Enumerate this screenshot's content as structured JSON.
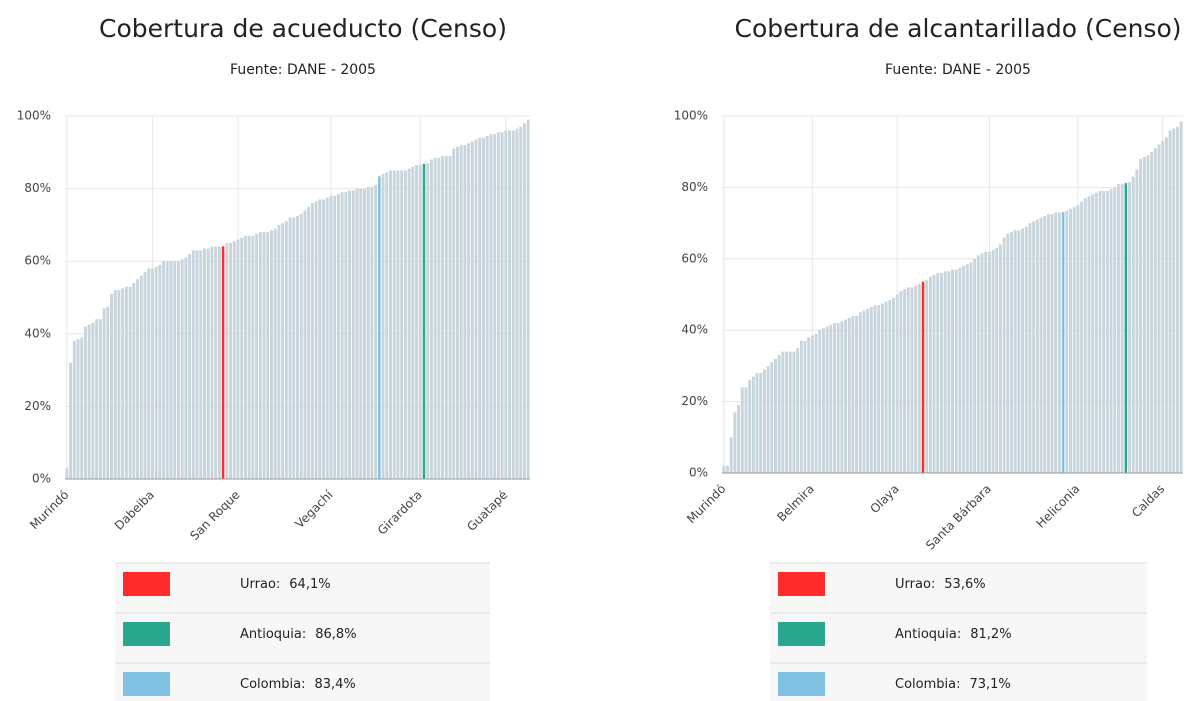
{
  "chart_data": [
    {
      "type": "bar",
      "title": "Cobertura de acueducto (Censo)",
      "subtitle": "Fuente: DANE - 2005",
      "categories": [
        "Murindó",
        null,
        null,
        null,
        null,
        null,
        null,
        null,
        null,
        null,
        null,
        null,
        null,
        null,
        null,
        null,
        null,
        null,
        null,
        null,
        null,
        null,
        null,
        "Dabeiba",
        null,
        null,
        null,
        null,
        null,
        null,
        null,
        null,
        null,
        null,
        null,
        null,
        null,
        null,
        null,
        null,
        null,
        null,
        null,
        null,
        null,
        null,
        "San Roque",
        null,
        null,
        null,
        null,
        null,
        null,
        null,
        null,
        null,
        null,
        null,
        null,
        null,
        null,
        null,
        null,
        null,
        null,
        null,
        null,
        null,
        null,
        null,
        null,
        "Vegachí",
        null,
        null,
        null,
        null,
        null,
        null,
        null,
        null,
        null,
        null,
        null,
        null,
        null,
        null,
        null,
        null,
        null,
        null,
        null,
        null,
        null,
        null,
        null,
        "Girardota",
        null,
        null,
        null,
        null,
        null,
        null,
        null,
        null,
        null,
        null,
        null,
        null,
        null,
        null,
        null,
        null,
        null,
        null,
        null,
        null,
        null,
        null,
        "Guatapé",
        null,
        null,
        null,
        null,
        null,
        null
      ],
      "values": [
        3,
        32,
        38,
        38.5,
        39,
        42,
        42.5,
        43,
        44,
        44,
        47,
        47.5,
        51,
        52,
        52,
        52.5,
        53,
        53,
        54,
        55,
        56,
        57,
        58,
        58,
        58.5,
        59,
        60,
        60,
        60,
        60,
        60,
        60.5,
        61,
        62,
        63,
        63,
        63,
        63.5,
        63.5,
        64,
        64,
        64,
        64.1,
        65,
        65,
        65.5,
        66,
        66.5,
        67,
        67,
        67,
        67.5,
        68,
        68,
        68,
        68.5,
        69,
        70,
        70.5,
        71,
        72,
        72,
        72.5,
        73,
        74,
        75,
        76,
        76.5,
        77,
        77,
        77.5,
        78,
        78,
        78.5,
        79,
        79,
        79.5,
        79.5,
        80,
        80,
        80,
        80.5,
        80.5,
        81,
        83.4,
        84,
        84.5,
        85,
        85,
        85,
        85,
        85,
        85.5,
        86,
        86.5,
        86.5,
        86.8,
        87,
        88,
        88.5,
        88.5,
        89,
        89,
        89,
        91,
        91.5,
        92,
        92,
        92.5,
        93,
        93.5,
        94,
        94,
        94.5,
        95,
        95,
        95.5,
        95.5,
        96,
        96,
        96,
        96.5,
        97,
        98,
        99
      ],
      "color": "#c8d5dc",
      "ylim": [
        0,
        100
      ],
      "yticks": [
        {
          "value": 0,
          "label": "0%"
        },
        {
          "value": 20,
          "label": "20%"
        },
        {
          "value": 40,
          "label": "40%"
        },
        {
          "value": 60,
          "label": "60%"
        },
        {
          "value": 80,
          "label": "80%"
        },
        {
          "value": 100,
          "label": "100%"
        }
      ],
      "grid": true,
      "highlights": [
        {
          "label": "Urrao:",
          "index": 42,
          "color": "#ff2b2b",
          "value": 64.1,
          "value_label": "64,1%"
        },
        {
          "label": "Antioquia:",
          "index": 96,
          "color": "#2aa88e",
          "value": 86.8,
          "value_label": "86,8%"
        },
        {
          "label": "Colombia:",
          "index": 84,
          "color": "#80c0e0",
          "value": 83.4,
          "value_label": "83,4%"
        }
      ]
    },
    {
      "type": "bar",
      "title": "Cobertura de alcantarillado (Censo)",
      "subtitle": "Fuente: DANE - 2005",
      "categories": [
        "Murindó",
        null,
        null,
        null,
        null,
        null,
        null,
        null,
        null,
        null,
        null,
        null,
        null,
        null,
        null,
        null,
        null,
        null,
        null,
        null,
        null,
        null,
        null,
        null,
        "Belmira",
        null,
        null,
        null,
        null,
        null,
        null,
        null,
        null,
        null,
        null,
        null,
        null,
        null,
        null,
        null,
        null,
        null,
        null,
        null,
        null,
        null,
        null,
        "Olaya",
        null,
        null,
        null,
        null,
        null,
        null,
        null,
        null,
        null,
        null,
        null,
        null,
        null,
        null,
        null,
        null,
        null,
        null,
        null,
        null,
        null,
        null,
        null,
        null,
        "Santa Bárbara",
        null,
        null,
        null,
        null,
        null,
        null,
        null,
        null,
        null,
        null,
        null,
        null,
        null,
        null,
        null,
        null,
        null,
        null,
        null,
        null,
        null,
        null,
        null,
        "Heliconia",
        null,
        null,
        null,
        null,
        null,
        null,
        null,
        null,
        null,
        null,
        null,
        null,
        null,
        null,
        null,
        null,
        null,
        null,
        null,
        null,
        null,
        null,
        "Caldas",
        null,
        null,
        null,
        null,
        null
      ],
      "values": [
        2,
        2,
        10,
        17,
        19,
        24,
        24,
        26,
        27,
        28,
        28,
        29,
        30,
        31,
        32,
        33,
        34,
        34,
        34,
        34,
        35,
        37,
        37,
        38,
        38.5,
        39,
        40,
        40.5,
        41,
        41.5,
        42,
        42,
        42.5,
        43,
        43.5,
        44,
        44,
        45,
        45.5,
        46,
        46.5,
        47,
        47,
        47.5,
        48,
        48.5,
        49,
        50,
        51,
        51.5,
        52,
        52,
        52.5,
        53,
        53.6,
        54,
        55,
        55.5,
        56,
        56,
        56.5,
        56.5,
        57,
        57,
        57.5,
        58,
        58.5,
        59,
        60,
        61,
        61.5,
        62,
        62,
        62.5,
        63,
        64,
        66,
        67,
        67.5,
        68,
        68,
        68.5,
        69,
        70,
        70.5,
        71,
        71.5,
        72,
        72.5,
        72.5,
        73,
        73,
        73.1,
        73.5,
        74,
        74.5,
        75,
        76,
        77,
        77.5,
        78,
        78.5,
        79,
        79,
        79,
        79.5,
        80,
        81,
        81,
        81.2,
        81.5,
        83,
        85,
        88,
        88.5,
        89,
        90,
        91,
        92,
        93,
        94,
        96,
        96.5,
        97,
        98.5
      ],
      "color": "#c8d5dc",
      "ylim": [
        0,
        100
      ],
      "yticks": [
        {
          "value": 0,
          "label": "0%"
        },
        {
          "value": 20,
          "label": "20%"
        },
        {
          "value": 40,
          "label": "40%"
        },
        {
          "value": 60,
          "label": "60%"
        },
        {
          "value": 80,
          "label": "80%"
        },
        {
          "value": 100,
          "label": "100%"
        }
      ],
      "grid": true,
      "highlights": [
        {
          "label": "Urrao:",
          "index": 54,
          "color": "#ff2b2b",
          "value": 53.6,
          "value_label": "53,6%"
        },
        {
          "label": "Antioquia:",
          "index": 109,
          "color": "#2aa88e",
          "value": 81.2,
          "value_label": "81,2%"
        },
        {
          "label": "Colombia:",
          "index": 92,
          "color": "#80c0e0",
          "value": 73.1,
          "value_label": "73,1%"
        }
      ]
    }
  ]
}
